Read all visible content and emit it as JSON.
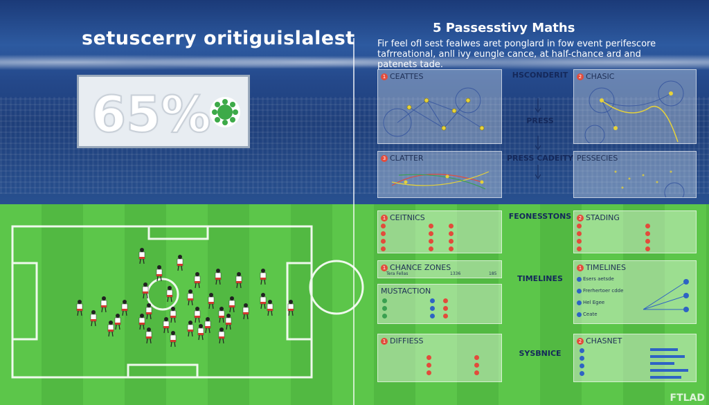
{
  "left": {
    "title": "setuscerry oritiguislalest",
    "big_percent": "65%"
  },
  "right": {
    "title": "5 Passesstivy Maths",
    "subtitle": "Fir feel ofI sest fealwes aret ponglard in fow event perifescore tafrreational, anll ivy eungle cance, at half-chance ard and patenets tade."
  },
  "panels": {
    "cefttes": "CEATTES",
    "chasic": "CHASIC",
    "clatter": "CLATTER",
    "passecies": "PESSECIES",
    "ceitnics": "CEITNICS",
    "stading": "STADING",
    "chance_zones": "CHANCE ZONES",
    "chance_zones_row": "Tera Fellas",
    "chance_zones_v1": "1336",
    "chance_zones_v2": "185",
    "timelines_right": "TIMELINES",
    "mustaction": "MUSTACTION",
    "diffiess": "DIFFIESS",
    "chasnet": "CHASNET"
  },
  "mid": {
    "hsconderit": "HSCONDERIT",
    "press": "PRESS",
    "press_cadeity": "PRESS CADEITY",
    "feonesstons": "FEONESSTONS",
    "timelines": "TIMELINES",
    "sysbnice": "SYSBNICE"
  },
  "timelines_items": [
    "Esers aetsde",
    "Frerhertoer cdde",
    "Hel Egee",
    "Ceate"
  ],
  "footer_mark": "FTLAD",
  "colors": {
    "accent_red": "#e24b3b",
    "accent_blue": "#2e63c4",
    "pitch": "#5cc64a",
    "sky": "#1f3f7a"
  }
}
